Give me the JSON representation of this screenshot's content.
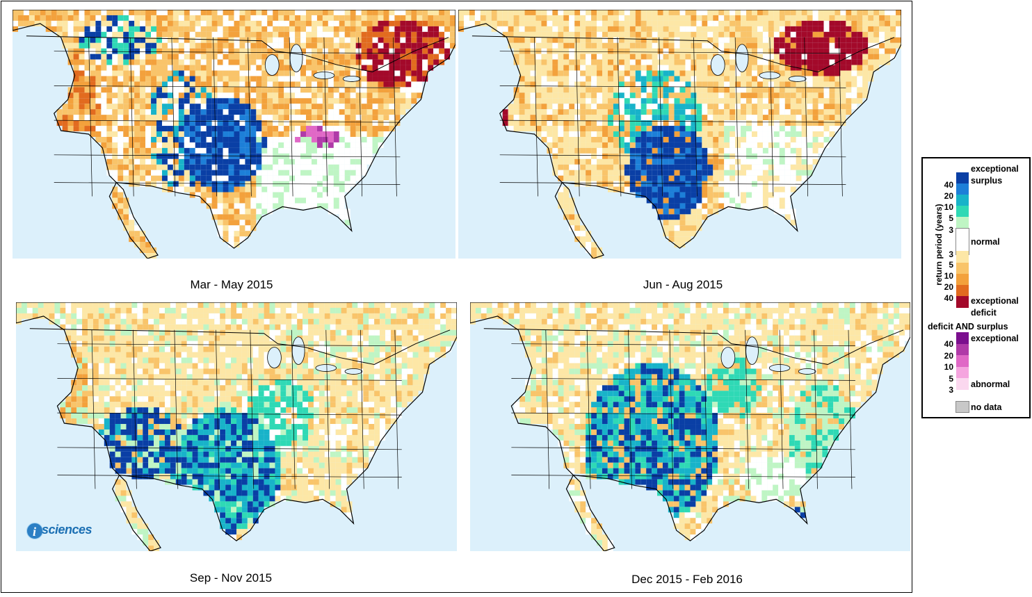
{
  "panels": [
    {
      "id": "mar-may-2015",
      "caption": "Mar - May 2015"
    },
    {
      "id": "jun-aug-2015",
      "caption": "Jun - Aug 2015"
    },
    {
      "id": "sep-nov-2015",
      "caption": "Sep - Nov 2015"
    },
    {
      "id": "dec-2015-feb-2016",
      "caption": "Dec 2015 - Feb 2016"
    }
  ],
  "legend": {
    "axis_label": "return period (years)",
    "exceptional_surplus_line1": "exceptional",
    "exceptional_surplus_line2": "surplus",
    "normal": "normal",
    "exceptional_deficit_line1": "exceptional",
    "exceptional_deficit_line2": "deficit",
    "both_title": "deficit AND surplus",
    "both_exceptional": "exceptional",
    "both_abnormal": "abnormal",
    "no_data": "no data",
    "surplus_ticks": [
      "40",
      "20",
      "10",
      "5",
      "3"
    ],
    "deficit_ticks": [
      "3",
      "5",
      "10",
      "20",
      "40"
    ],
    "both_ticks": [
      "40",
      "20",
      "10",
      "5",
      "3"
    ],
    "surplus_colors": [
      "#0a3fa5",
      "#1d7fd8",
      "#18b3c9",
      "#2fd9b5",
      "#bff5c4"
    ],
    "deficit_colors": [
      "#fde7a6",
      "#f9c46a",
      "#f3a13c",
      "#e26b1f",
      "#a3092a"
    ],
    "both_colors": [
      "#7b0f8e",
      "#b03aa8",
      "#e068c6",
      "#f5a5df",
      "#fbd8ef"
    ],
    "normal_color": "#ffffff",
    "nodata_color": "#c8c8c8"
  },
  "branding": {
    "logo_text": "sciences",
    "logo_letter": "i"
  },
  "colors": {
    "ocean": "#dcf0fb",
    "land_base": "#fbe7b0",
    "border": "#000000"
  }
}
